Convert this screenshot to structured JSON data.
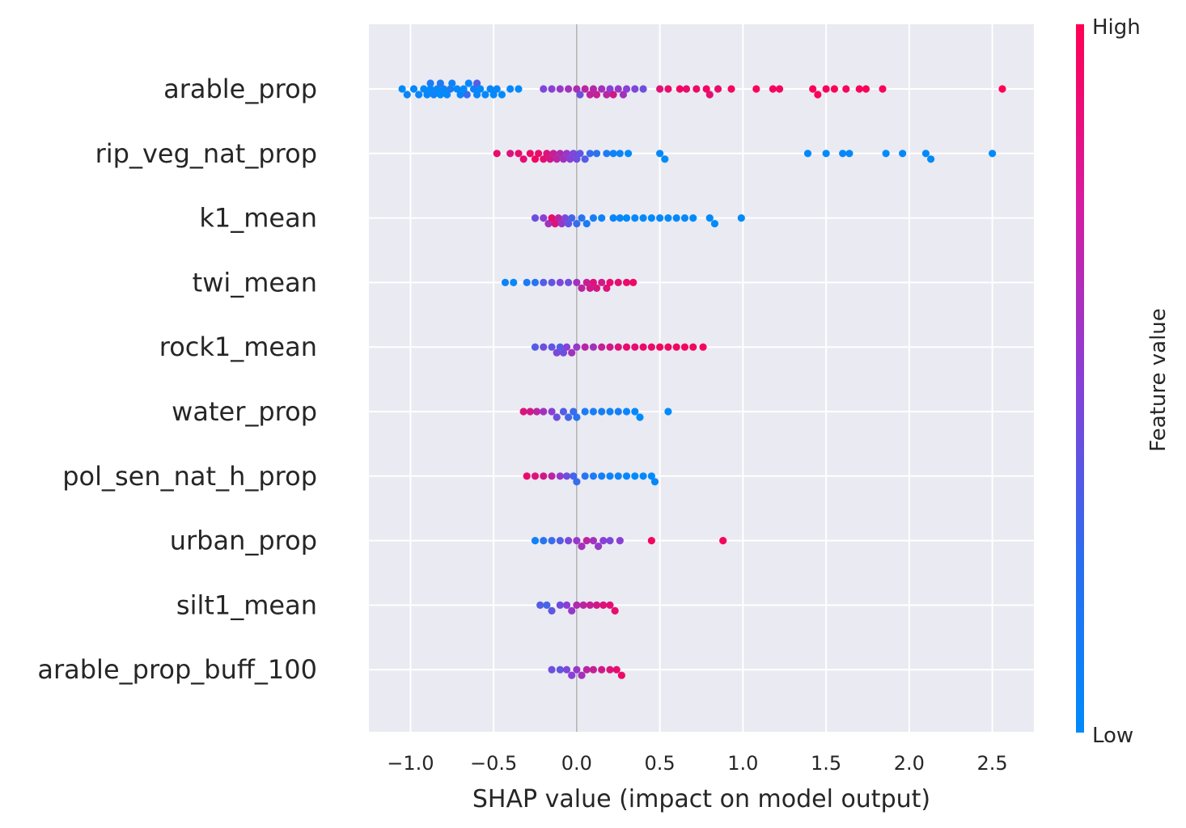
{
  "chart_data": {
    "type": "scatter",
    "subtype": "shap-beeswarm",
    "xlabel": "SHAP value (impact on model output)",
    "xlim": [
      -1.25,
      2.75
    ],
    "x_ticks": [
      -1.0,
      -0.5,
      0.0,
      0.5,
      1.0,
      1.5,
      2.0,
      2.5
    ],
    "x_tick_labels": [
      "−1.0",
      "−0.5",
      "0.0",
      "0.5",
      "1.0",
      "1.5",
      "2.0",
      "2.5"
    ],
    "grid": true,
    "colorbar": {
      "title": "Feature value",
      "high_label": "High",
      "low_label": "Low",
      "low_color": "#008bfb",
      "high_color": "#ff0052"
    },
    "features": [
      {
        "name": "arable_prop",
        "points": [
          [
            -1.05,
            0.0
          ],
          [
            -1.02,
            0.05
          ],
          [
            -0.98,
            0.02
          ],
          [
            -0.95,
            0.04
          ],
          [
            -0.92,
            0.0
          ],
          [
            -0.9,
            0.03
          ],
          [
            -0.88,
            0.01
          ],
          [
            -0.86,
            0.06
          ],
          [
            -0.84,
            0.02
          ],
          [
            -0.82,
            0.0
          ],
          [
            -0.8,
            0.04
          ],
          [
            -0.78,
            0.02
          ],
          [
            -0.75,
            0.05
          ],
          [
            -0.72,
            0.01
          ],
          [
            -0.7,
            0.03
          ],
          [
            -0.68,
            0.0
          ],
          [
            -0.65,
            0.02
          ],
          [
            -0.62,
            0.05
          ],
          [
            -0.6,
            0.04
          ],
          [
            -0.58,
            0.0
          ],
          [
            -0.55,
            0.02
          ],
          [
            -0.52,
            0.03
          ],
          [
            -0.5,
            0.01
          ],
          [
            -0.48,
            0.04
          ],
          [
            -0.45,
            0.0
          ],
          [
            -0.4,
            0.02
          ],
          [
            -0.35,
            0.0
          ],
          [
            -0.88,
            0.1
          ],
          [
            -0.82,
            0.12
          ],
          [
            -0.76,
            0.1
          ],
          [
            -0.66,
            0.2
          ],
          [
            -0.6,
            0.3
          ],
          [
            -0.2,
            0.45
          ],
          [
            -0.15,
            0.5
          ],
          [
            -0.1,
            0.55
          ],
          [
            -0.05,
            0.6
          ],
          [
            0.0,
            0.65
          ],
          [
            0.02,
            0.4
          ],
          [
            0.05,
            0.7
          ],
          [
            0.08,
            0.72
          ],
          [
            0.1,
            0.68
          ],
          [
            0.12,
            0.75
          ],
          [
            0.15,
            0.6
          ],
          [
            0.18,
            0.7
          ],
          [
            0.2,
            0.5
          ],
          [
            0.22,
            0.8
          ],
          [
            0.25,
            0.55
          ],
          [
            0.28,
            0.6
          ],
          [
            0.3,
            0.5
          ],
          [
            0.35,
            0.45
          ],
          [
            0.4,
            0.4
          ],
          [
            0.5,
            0.85
          ],
          [
            0.55,
            0.9
          ],
          [
            0.62,
            0.95
          ],
          [
            0.66,
            0.9
          ],
          [
            0.72,
            0.92
          ],
          [
            0.78,
            0.95
          ],
          [
            0.8,
            0.88
          ],
          [
            0.85,
            0.9
          ],
          [
            0.93,
            0.95
          ],
          [
            1.08,
            0.97
          ],
          [
            1.18,
            0.96
          ],
          [
            1.22,
            0.95
          ],
          [
            1.42,
            0.98
          ],
          [
            1.45,
            0.97
          ],
          [
            1.5,
            0.96
          ],
          [
            1.55,
            0.98
          ],
          [
            1.62,
            0.96
          ],
          [
            1.7,
            0.97
          ],
          [
            1.74,
            0.98
          ],
          [
            1.84,
            0.97
          ],
          [
            2.56,
            1.0
          ]
        ]
      },
      {
        "name": "rip_veg_nat_prop",
        "points": [
          [
            -0.48,
            0.9
          ],
          [
            -0.4,
            0.85
          ],
          [
            -0.35,
            0.9
          ],
          [
            -0.32,
            0.88
          ],
          [
            -0.28,
            0.92
          ],
          [
            -0.25,
            0.95
          ],
          [
            -0.23,
            0.9
          ],
          [
            -0.2,
            0.88
          ],
          [
            -0.18,
            0.85
          ],
          [
            -0.16,
            0.8
          ],
          [
            -0.14,
            0.75
          ],
          [
            -0.12,
            0.7
          ],
          [
            -0.1,
            0.65
          ],
          [
            -0.08,
            0.6
          ],
          [
            -0.06,
            0.55
          ],
          [
            -0.04,
            0.5
          ],
          [
            -0.02,
            0.45
          ],
          [
            0.0,
            0.4
          ],
          [
            0.02,
            0.35
          ],
          [
            0.05,
            0.3
          ],
          [
            0.08,
            0.2
          ],
          [
            0.12,
            0.15
          ],
          [
            0.18,
            0.1
          ],
          [
            0.22,
            0.05
          ],
          [
            0.26,
            0.04
          ],
          [
            0.31,
            0.0
          ],
          [
            0.5,
            0.02
          ],
          [
            0.53,
            0.0
          ],
          [
            1.39,
            0.01
          ],
          [
            1.5,
            0.0
          ],
          [
            1.6,
            0.02
          ],
          [
            1.64,
            0.01
          ],
          [
            1.86,
            0.0
          ],
          [
            1.96,
            0.02
          ],
          [
            2.1,
            0.01
          ],
          [
            2.13,
            0.0
          ],
          [
            2.5,
            0.0
          ]
        ]
      },
      {
        "name": "k1_mean",
        "points": [
          [
            -0.25,
            0.4
          ],
          [
            -0.2,
            0.5
          ],
          [
            -0.17,
            0.6
          ],
          [
            -0.15,
            0.9
          ],
          [
            -0.13,
            0.85
          ],
          [
            -0.11,
            0.7
          ],
          [
            -0.09,
            0.55
          ],
          [
            -0.07,
            0.45
          ],
          [
            -0.05,
            0.35
          ],
          [
            -0.03,
            0.25
          ],
          [
            0.0,
            0.2
          ],
          [
            0.03,
            0.15
          ],
          [
            0.06,
            0.1
          ],
          [
            0.1,
            0.08
          ],
          [
            0.15,
            0.05
          ],
          [
            0.22,
            0.04
          ],
          [
            0.26,
            0.02
          ],
          [
            0.3,
            0.0
          ],
          [
            0.35,
            0.02
          ],
          [
            0.4,
            0.01
          ],
          [
            0.45,
            0.0
          ],
          [
            0.5,
            0.02
          ],
          [
            0.55,
            0.0
          ],
          [
            0.6,
            0.01
          ],
          [
            0.65,
            0.02
          ],
          [
            0.7,
            0.0
          ],
          [
            0.8,
            0.01
          ],
          [
            0.83,
            0.0
          ],
          [
            0.99,
            0.0
          ]
        ]
      },
      {
        "name": "twi_mean",
        "points": [
          [
            -0.43,
            0.05
          ],
          [
            -0.38,
            0.02
          ],
          [
            -0.3,
            0.1
          ],
          [
            -0.25,
            0.15
          ],
          [
            -0.2,
            0.3
          ],
          [
            -0.15,
            0.35
          ],
          [
            -0.1,
            0.45
          ],
          [
            -0.05,
            0.4
          ],
          [
            0.0,
            0.6
          ],
          [
            0.03,
            0.7
          ],
          [
            0.06,
            0.75
          ],
          [
            0.08,
            0.8
          ],
          [
            0.1,
            0.85
          ],
          [
            0.12,
            0.82
          ],
          [
            0.15,
            0.8
          ],
          [
            0.18,
            0.85
          ],
          [
            0.2,
            0.9
          ],
          [
            0.25,
            0.88
          ],
          [
            0.3,
            0.9
          ],
          [
            0.34,
            0.92
          ]
        ]
      },
      {
        "name": "rock1_mean",
        "points": [
          [
            -0.25,
            0.3
          ],
          [
            -0.2,
            0.4
          ],
          [
            -0.15,
            0.35
          ],
          [
            -0.12,
            0.45
          ],
          [
            -0.1,
            0.3
          ],
          [
            -0.08,
            0.4
          ],
          [
            -0.06,
            0.5
          ],
          [
            -0.03,
            0.6
          ],
          [
            0.0,
            0.55
          ],
          [
            0.05,
            0.7
          ],
          [
            0.1,
            0.6
          ],
          [
            0.15,
            0.75
          ],
          [
            0.2,
            0.8
          ],
          [
            0.25,
            0.85
          ],
          [
            0.3,
            0.9
          ],
          [
            0.35,
            0.88
          ],
          [
            0.4,
            0.92
          ],
          [
            0.45,
            0.9
          ],
          [
            0.5,
            0.95
          ],
          [
            0.55,
            0.92
          ],
          [
            0.6,
            0.93
          ],
          [
            0.65,
            0.95
          ],
          [
            0.7,
            0.94
          ],
          [
            0.76,
            0.96
          ]
        ]
      },
      {
        "name": "water_prop",
        "points": [
          [
            -0.32,
            0.85
          ],
          [
            -0.28,
            0.8
          ],
          [
            -0.24,
            0.7
          ],
          [
            -0.2,
            0.6
          ],
          [
            -0.15,
            0.5
          ],
          [
            -0.12,
            0.4
          ],
          [
            -0.08,
            0.3
          ],
          [
            -0.05,
            0.25
          ],
          [
            -0.02,
            0.2
          ],
          [
            0.0,
            0.15
          ],
          [
            0.05,
            0.1
          ],
          [
            0.1,
            0.08
          ],
          [
            0.15,
            0.1
          ],
          [
            0.2,
            0.05
          ],
          [
            0.25,
            0.08
          ],
          [
            0.3,
            0.04
          ],
          [
            0.35,
            0.02
          ],
          [
            0.38,
            0.0
          ],
          [
            0.55,
            0.0
          ]
        ]
      },
      {
        "name": "pol_sen_nat_h_prop",
        "points": [
          [
            -0.3,
            0.9
          ],
          [
            -0.25,
            0.85
          ],
          [
            -0.2,
            0.8
          ],
          [
            -0.15,
            0.7
          ],
          [
            -0.1,
            0.55
          ],
          [
            -0.06,
            0.4
          ],
          [
            -0.02,
            0.25
          ],
          [
            0.0,
            0.2
          ],
          [
            0.05,
            0.15
          ],
          [
            0.1,
            0.1
          ],
          [
            0.15,
            0.08
          ],
          [
            0.2,
            0.05
          ],
          [
            0.25,
            0.04
          ],
          [
            0.3,
            0.02
          ],
          [
            0.35,
            0.0
          ],
          [
            0.4,
            0.02
          ],
          [
            0.45,
            0.0
          ],
          [
            0.47,
            0.01
          ]
        ]
      },
      {
        "name": "urban_prop",
        "points": [
          [
            -0.25,
            0.05
          ],
          [
            -0.2,
            0.15
          ],
          [
            -0.15,
            0.2
          ],
          [
            -0.1,
            0.3
          ],
          [
            -0.05,
            0.45
          ],
          [
            0.0,
            0.55
          ],
          [
            0.03,
            0.6
          ],
          [
            0.06,
            0.7
          ],
          [
            0.1,
            0.6
          ],
          [
            0.13,
            0.55
          ],
          [
            0.16,
            0.5
          ],
          [
            0.2,
            0.45
          ],
          [
            0.26,
            0.5
          ],
          [
            0.45,
            0.95
          ],
          [
            0.88,
            0.96
          ]
        ]
      },
      {
        "name": "silt1_mean",
        "points": [
          [
            -0.22,
            0.3
          ],
          [
            -0.18,
            0.25
          ],
          [
            -0.15,
            0.35
          ],
          [
            -0.1,
            0.4
          ],
          [
            -0.06,
            0.5
          ],
          [
            -0.03,
            0.55
          ],
          [
            0.0,
            0.65
          ],
          [
            0.04,
            0.7
          ],
          [
            0.08,
            0.75
          ],
          [
            0.12,
            0.8
          ],
          [
            0.16,
            0.85
          ],
          [
            0.2,
            0.88
          ],
          [
            0.23,
            0.9
          ]
        ]
      },
      {
        "name": "arable_prop_buff_100",
        "points": [
          [
            -0.15,
            0.4
          ],
          [
            -0.1,
            0.35
          ],
          [
            -0.06,
            0.45
          ],
          [
            -0.03,
            0.5
          ],
          [
            0.0,
            0.55
          ],
          [
            0.03,
            0.6
          ],
          [
            0.06,
            0.7
          ],
          [
            0.1,
            0.75
          ],
          [
            0.15,
            0.8
          ],
          [
            0.2,
            0.85
          ],
          [
            0.24,
            0.9
          ],
          [
            0.27,
            0.92
          ]
        ]
      }
    ]
  }
}
